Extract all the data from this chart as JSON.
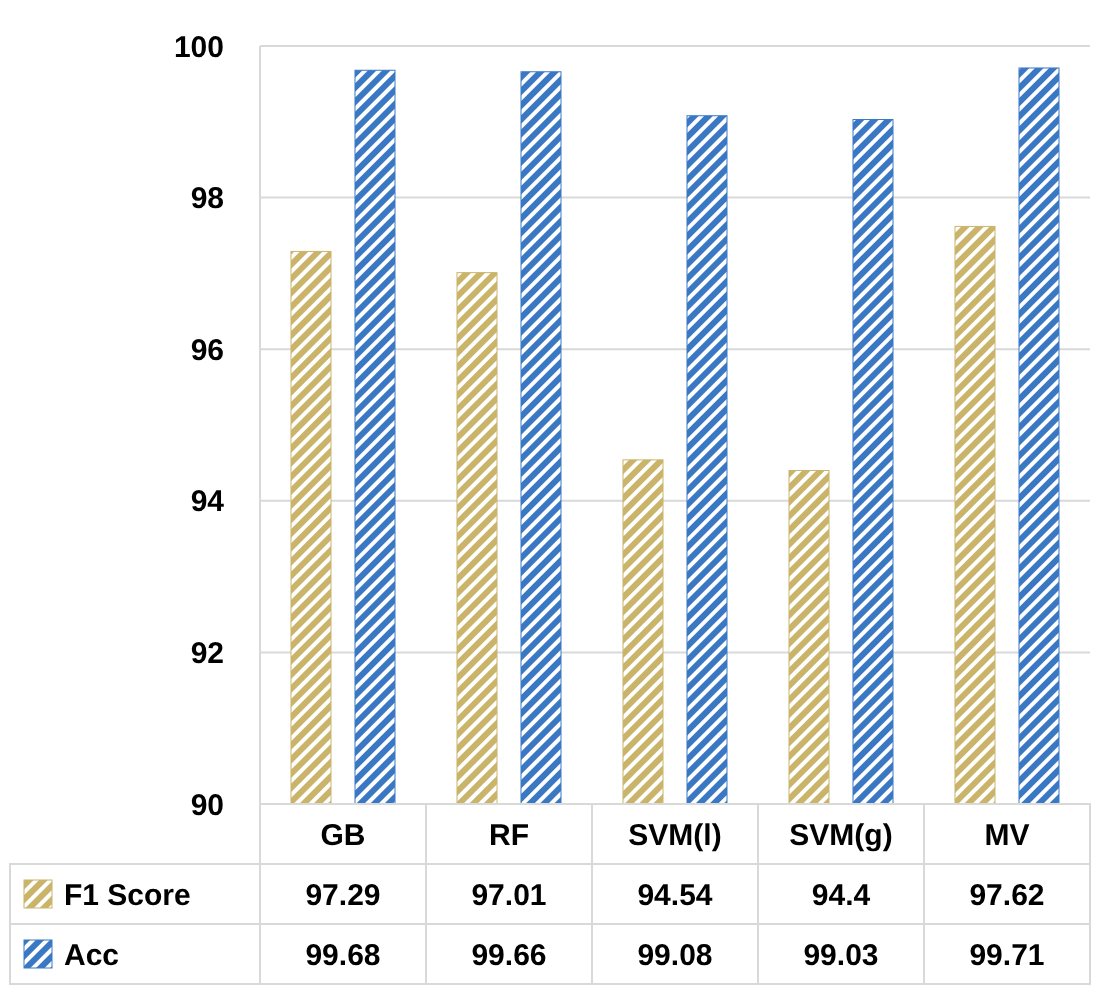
{
  "chart_data": {
    "type": "bar",
    "categories": [
      "GB",
      "RF",
      "SVM(l)",
      "SVM(g)",
      "MV"
    ],
    "series": [
      {
        "name": "F1 Score",
        "color": "#c9b46a",
        "values": [
          97.29,
          97.01,
          94.54,
          94.4,
          97.62
        ]
      },
      {
        "name": "Acc",
        "color": "#3b78c4",
        "values": [
          99.68,
          99.66,
          99.08,
          99.03,
          99.71
        ]
      }
    ],
    "ylim": [
      90,
      100
    ],
    "yticks": [
      90,
      92,
      94,
      96,
      98,
      100
    ],
    "grid": "y",
    "legend": "bottom",
    "data_labels": true
  }
}
